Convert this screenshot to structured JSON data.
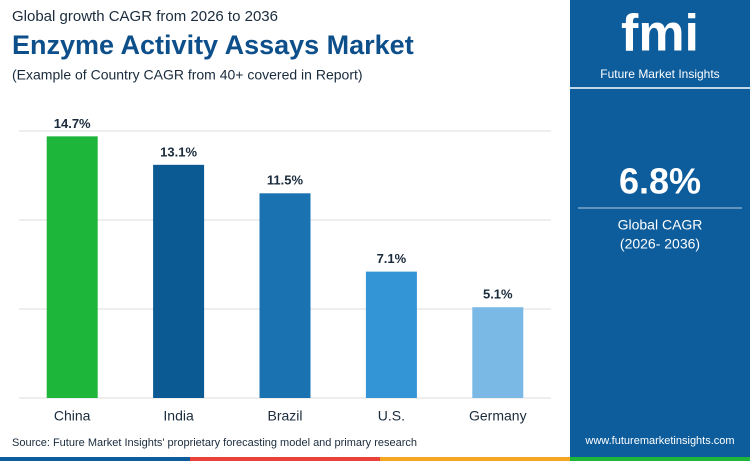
{
  "chart_data": {
    "type": "bar",
    "kicker": "Global growth CAGR from 2026 to 2036",
    "title": "Enzyme Activity Assays Market",
    "subtitle": "(Example of Country CAGR from 40+ covered in Report)",
    "categories": [
      "China",
      "India",
      "Brazil",
      "U.S.",
      "Germany"
    ],
    "values": [
      14.7,
      13.1,
      11.5,
      7.1,
      5.1
    ],
    "value_labels": [
      "14.7%",
      "13.1%",
      "11.5%",
      "7.1%",
      "5.1%"
    ],
    "colors": [
      "#1db53a",
      "#0c5a93",
      "#1a73b0",
      "#3395d6",
      "#7ab8e6"
    ],
    "ylim": [
      0,
      15
    ],
    "yticks": [
      0,
      5,
      10,
      15
    ],
    "grid": true,
    "source": "Source: Future Market Insights' proprietary forecasting model and primary research"
  },
  "panel": {
    "logo": "fmi",
    "brand": "Future Market Insights",
    "headline": "6.8%",
    "label": "Global CAGR",
    "period": "(2026- 2036)",
    "website": "www.futuremarketinsights.com"
  }
}
